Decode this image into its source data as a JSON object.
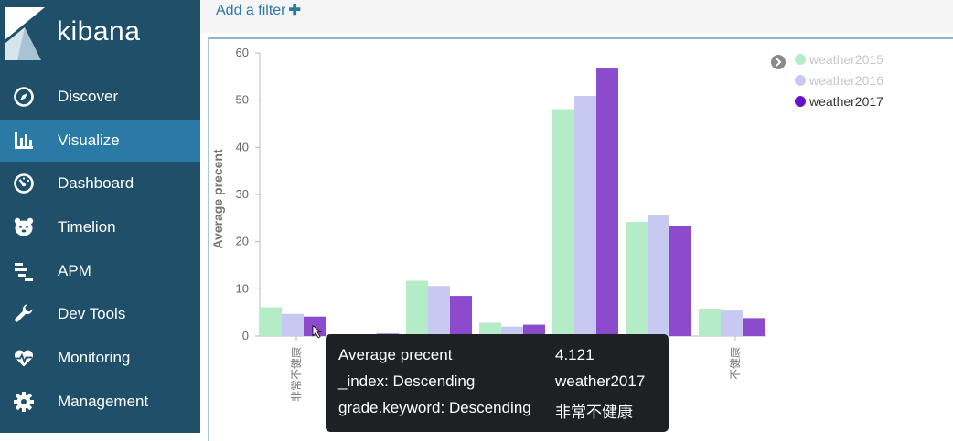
{
  "app": {
    "name": "kibana"
  },
  "sidebar": {
    "items": [
      {
        "label": "Discover",
        "icon": "compass-icon"
      },
      {
        "label": "Visualize",
        "icon": "bar-chart-icon",
        "active": true
      },
      {
        "label": "Dashboard",
        "icon": "dashboard-gauge-icon"
      },
      {
        "label": "Timelion",
        "icon": "bear-icon"
      },
      {
        "label": "APM",
        "icon": "apm-lines-icon"
      },
      {
        "label": "Dev Tools",
        "icon": "wrench-icon"
      },
      {
        "label": "Monitoring",
        "icon": "heart-pulse-icon"
      },
      {
        "label": "Management",
        "icon": "gear-icon"
      }
    ]
  },
  "filter_bar": {
    "add_filter_label": "Add a filter",
    "add_icon": "plus-icon"
  },
  "colors": {
    "sidebar_bg": "#1f4f69",
    "sidebar_active": "#2b7aa6",
    "series": [
      "#b4ecc8",
      "#c8c9f2",
      "#8b4bcc"
    ],
    "highlight_series": "#6a10c6"
  },
  "chart_data": {
    "type": "bar",
    "ylabel": "Average precent",
    "ylim": [
      0,
      60
    ],
    "yticks": [
      0,
      10,
      20,
      30,
      40,
      50,
      60
    ],
    "categories": [
      "非常不健康",
      "",
      "",
      "",
      "",
      "",
      "不健康"
    ],
    "series": [
      {
        "name": "weather2015",
        "values": [
          6.1,
          0.2,
          11.7,
          2.8,
          48.1,
          24.2,
          5.8
        ]
      },
      {
        "name": "weather2016",
        "values": [
          4.7,
          0,
          10.6,
          2.0,
          50.9,
          25.6,
          5.4
        ]
      },
      {
        "name": "weather2017",
        "values": [
          4.121,
          0.5,
          8.5,
          2.4,
          56.7,
          23.4,
          3.8
        ]
      }
    ],
    "legend": {
      "placement": "top-right",
      "highlighted": "weather2017",
      "toggle_icon": "chevron-right-circle-icon"
    },
    "grid": false
  },
  "tooltip": {
    "rows": [
      {
        "key": "Average precent",
        "value": "4.121"
      },
      {
        "key": "_index: Descending",
        "value": "weather2017"
      },
      {
        "key": "grade.keyword: Descending",
        "value": "非常不健康"
      }
    ]
  }
}
